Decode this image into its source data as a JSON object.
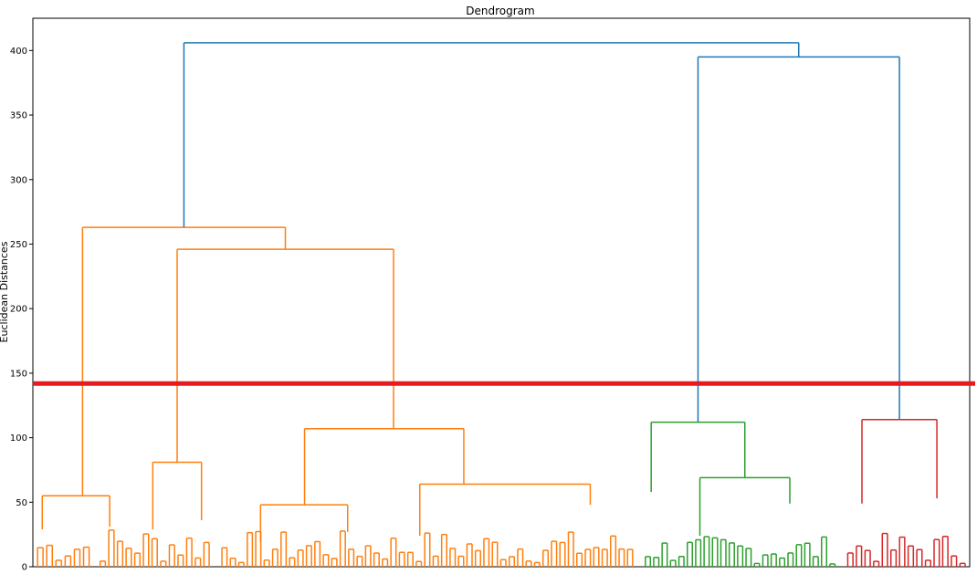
{
  "chart_data": {
    "type": "dendrogram",
    "title": "Dendrogram",
    "ylabel": "Euclidean Distances",
    "ylim": [
      0,
      425
    ],
    "y_ticks": [
      0,
      50,
      100,
      150,
      200,
      250,
      300,
      350,
      400
    ],
    "threshold_line": {
      "value": 142,
      "color": "#e8191f"
    },
    "colors": {
      "root": "#1f77b4",
      "orange": "#ff7f0e",
      "green": "#2ca02c",
      "red": "#d62728"
    },
    "merges": [
      {
        "left": 0.15,
        "right": 0.58,
        "height": 406,
        "color": "root"
      },
      {
        "left": 0.09,
        "right": 0.21,
        "height": 263,
        "color": "orange"
      },
      {
        "left": 0.86,
        "right": 0.96,
        "height": 395,
        "color": "root"
      },
      {
        "left": 0.13,
        "right": 0.32,
        "height": 246,
        "color": "orange"
      },
      {
        "left": 0.05,
        "right": 0.3,
        "height": 55,
        "color": "orange"
      },
      {
        "left": 0.3,
        "right": 0.6,
        "height": 81,
        "color": "orange"
      },
      {
        "left": 0.23,
        "right": 0.58,
        "height": 107,
        "color": "orange"
      },
      {
        "left": 0.21,
        "right": 0.77,
        "height": 48,
        "color": "orange"
      },
      {
        "left": 0.27,
        "right": 0.79,
        "height": 64,
        "color": "orange"
      },
      {
        "left": 0.07,
        "right": 0.82,
        "height": 112,
        "color": "green"
      },
      {
        "left": 0.12,
        "right": 0.44,
        "height": 114,
        "color": "red"
      }
    ]
  }
}
